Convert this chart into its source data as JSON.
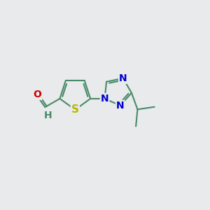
{
  "bg_color": "#e8eaec",
  "bond_color": "#4a8a6a",
  "bond_width": 1.5,
  "S_color": "#b8b800",
  "N_color": "#0000cc",
  "O_color": "#cc0000",
  "C_color": "#4a8a6a",
  "font_size": 10,
  "figsize": [
    3.0,
    3.0
  ],
  "dpi": 100,
  "xlim": [
    0,
    10
  ],
  "ylim": [
    0,
    10
  ]
}
